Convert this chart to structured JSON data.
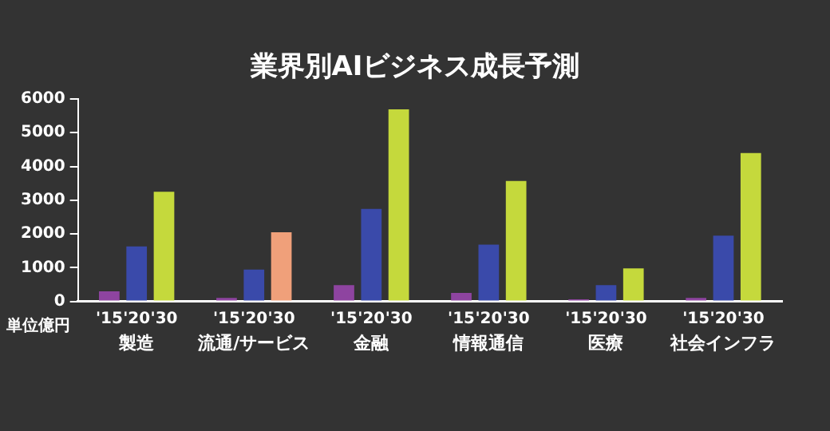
{
  "chart_data": {
    "type": "bar",
    "title": "業界別AIビジネス成長予測",
    "categories": [
      "製造",
      "流通/サービス",
      "金融",
      "情報通信",
      "医療",
      "社会インフラ"
    ],
    "series": [
      {
        "name": "'15",
        "color": "#8e44a0",
        "values": [
          300,
          100,
          480,
          250,
          60,
          100
        ]
      },
      {
        "name": "'20",
        "color": "#3a4aaa",
        "values": [
          1630,
          940,
          2740,
          1680,
          480,
          1950
        ]
      },
      {
        "name": "'30",
        "color": "#c5d93c",
        "colors": [
          "#c5d93c",
          "#f0a07a",
          "#c5d93c",
          "#c5d93c",
          "#c5d93c",
          "#c5d93c"
        ],
        "values": [
          3250,
          2050,
          5690,
          3570,
          980,
          4400
        ]
      }
    ],
    "ylim": [
      0,
      6000
    ],
    "yticks": [
      0,
      1000,
      2000,
      3000,
      4000,
      5000,
      6000
    ],
    "grid": false,
    "legend": false,
    "annotations": [
      "単位億円"
    ]
  }
}
